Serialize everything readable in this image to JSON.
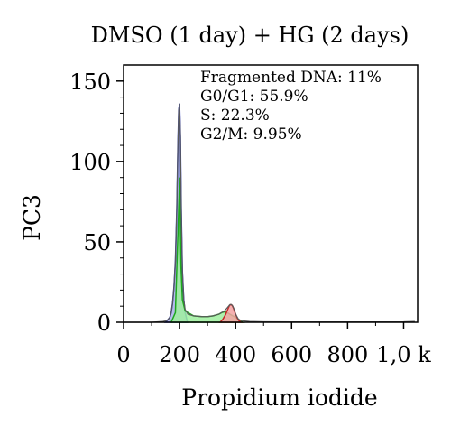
{
  "chart_data": {
    "type": "area",
    "title": "DMSO (1 day) + HG (2 days)",
    "xlabel": "Propidium iodide",
    "ylabel": "PC3",
    "xlim": [
      0,
      1050
    ],
    "ylim": [
      0,
      160
    ],
    "x_ticks": [
      0,
      200,
      400,
      600,
      800,
      1000
    ],
    "x_tick_labels": [
      "0",
      "200",
      "400",
      "600",
      "800",
      "1,0 k"
    ],
    "y_ticks": [
      0,
      50,
      100,
      150
    ],
    "y_tick_labels": [
      "0",
      "50",
      "100",
      "150"
    ],
    "grid": false,
    "annotations": [
      "Fragmented DNA: 11%",
      "G0/G1: 55.9%",
      "S: 22.3%",
      "G2/M: 9.95%"
    ],
    "histogram": {
      "x": [
        0,
        100,
        140,
        155,
        165,
        170,
        175,
        180,
        185,
        190,
        194,
        197,
        200,
        203,
        206,
        210,
        215,
        220,
        230,
        250,
        280,
        300,
        320,
        340,
        350,
        360,
        370,
        375,
        380,
        385,
        390,
        395,
        400,
        410,
        420,
        450,
        500,
        600,
        700,
        800,
        900,
        1000,
        1040
      ],
      "y": [
        0,
        0,
        0.5,
        1,
        3,
        6,
        12,
        22,
        38,
        70,
        110,
        132,
        136,
        115,
        70,
        32,
        14,
        8,
        5,
        4,
        3.5,
        3.5,
        4,
        5,
        6,
        7,
        9,
        10,
        11,
        11,
        10,
        8,
        5,
        2,
        1,
        0.5,
        0.3,
        0.2,
        0.2,
        0.2,
        0.2,
        0.3,
        0.5
      ]
    },
    "series": [
      {
        "name": "G0/G1",
        "color": "#1f2fc2",
        "fill": "#a8b0e6",
        "x": [
          150,
          160,
          165,
          170,
          175,
          180,
          185,
          190,
          194,
          197,
          200,
          203,
          206,
          210,
          215,
          220,
          228
        ],
        "y": [
          0,
          2,
          3,
          6,
          12,
          22,
          38,
          70,
          110,
          132,
          136,
          115,
          70,
          32,
          14,
          6,
          0
        ]
      },
      {
        "name": "S",
        "color": "#1ea81e",
        "fill": "#9ff09f",
        "x": [
          170,
          185,
          195,
          200,
          205,
          210,
          220,
          250,
          280,
          300,
          320,
          340,
          350,
          360,
          370,
          380,
          390,
          400,
          410,
          425
        ],
        "y": [
          0,
          6,
          60,
          90,
          35,
          14,
          7,
          4,
          3.5,
          3.5,
          4,
          5,
          6,
          6.5,
          6,
          5,
          4,
          3,
          1.5,
          0
        ]
      },
      {
        "name": "G2/M",
        "color": "#c82828",
        "fill": "#f3a3a3",
        "x": [
          345,
          355,
          365,
          372,
          378,
          383,
          388,
          393,
          398,
          405,
          412,
          420
        ],
        "y": [
          0,
          2,
          5,
          8,
          10.5,
          11,
          10.5,
          8.5,
          6,
          3,
          1,
          0
        ]
      }
    ]
  }
}
